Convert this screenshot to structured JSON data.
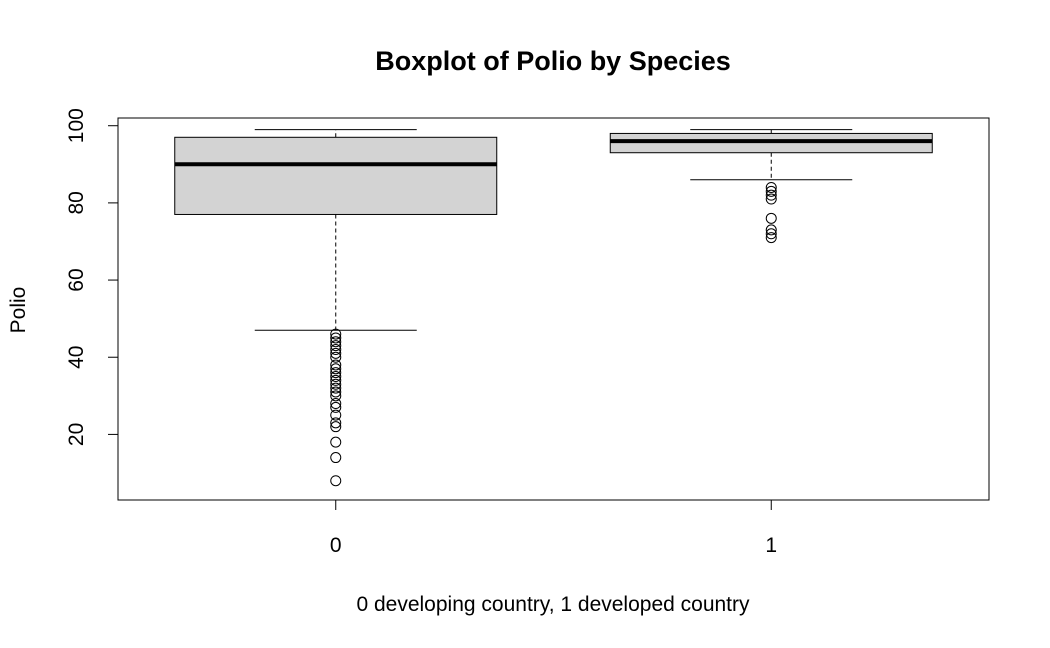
{
  "chart_data": {
    "type": "boxplot",
    "title": "Boxplot of Polio by Species",
    "xlabel": "0 developing country, 1 developed country",
    "ylabel": "Polio",
    "ylim": [
      3,
      102
    ],
    "yticks": [
      20,
      40,
      60,
      80,
      100
    ],
    "grid": false,
    "legend": "none",
    "box_fill": "#d3d3d3",
    "categories": [
      "0",
      "1"
    ],
    "boxes": [
      {
        "category": "0",
        "whisker_low": 47,
        "q1": 77,
        "median": 90,
        "q3": 97,
        "whisker_high": 99,
        "outliers": [
          46,
          45,
          44,
          43,
          42,
          41,
          40,
          38,
          37,
          36,
          35,
          34,
          33,
          32,
          31,
          30,
          28,
          27,
          25,
          23,
          22,
          18,
          14,
          8
        ]
      },
      {
        "category": "1",
        "whisker_low": 86,
        "q1": 93,
        "median": 96,
        "q3": 98,
        "whisker_high": 99,
        "outliers": [
          84,
          83,
          82,
          81,
          76,
          73,
          72,
          71
        ]
      }
    ]
  }
}
